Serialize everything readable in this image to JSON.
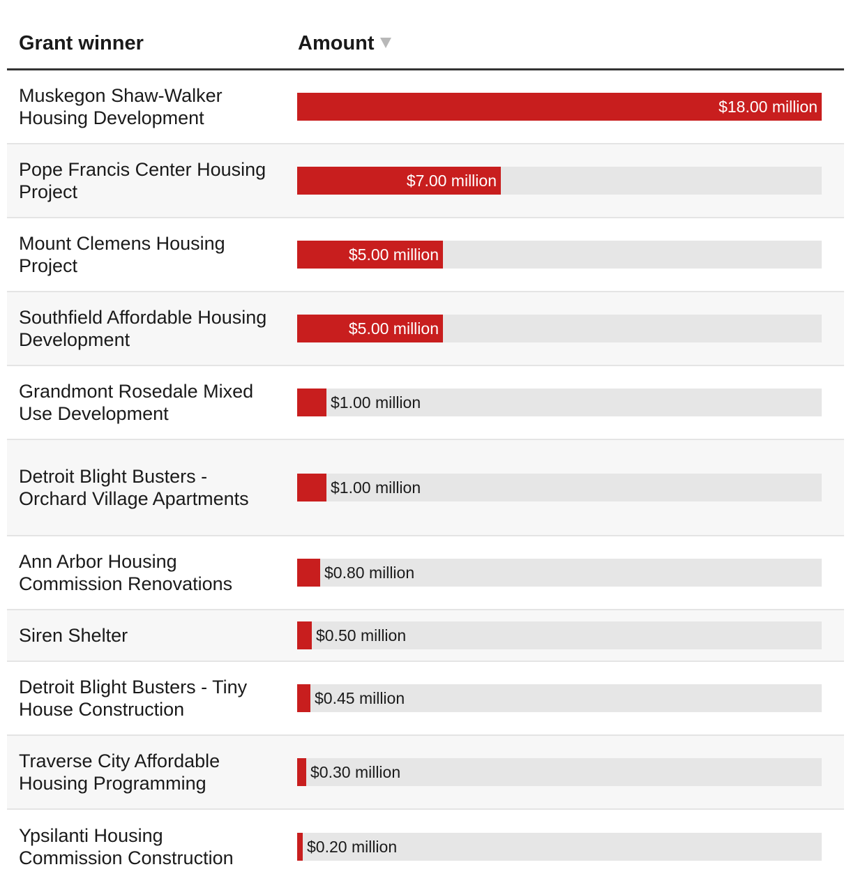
{
  "header": {
    "winner_label": "Grant winner",
    "amount_label": "Amount",
    "sort_icon": "sort-descending-icon"
  },
  "colors": {
    "bar": "#c81e1e",
    "track": "#e6e6e6",
    "alt_row": "#f7f7f7",
    "header_rule": "#333333"
  },
  "chart_data": {
    "type": "bar",
    "orientation": "horizontal",
    "unit": "million",
    "xlim": [
      0,
      18
    ],
    "categories": [
      "Muskegon Shaw-Walker Housing Development",
      "Pope Francis Center Housing Project",
      "Mount Clemens Housing Project",
      "Southfield Affordable Housing Development",
      "Grandmont Rosedale Mixed Use Development",
      "Detroit Blight Busters - Orchard Village Apartments",
      "Ann Arbor Housing Commission Renovations",
      "Siren Shelter",
      "Detroit Blight Busters - Tiny House Construction",
      "Traverse City Affordable Housing Programming",
      "Ypsilanti Housing Commission Construction"
    ],
    "values": [
      18.0,
      7.0,
      5.0,
      5.0,
      1.0,
      1.0,
      0.8,
      0.5,
      0.45,
      0.3,
      0.2
    ],
    "value_labels": [
      "$18.00 million",
      "$7.00 million",
      "$5.00 million",
      "$5.00 million",
      "$1.00 million",
      "$1.00 million",
      "$0.80 million",
      "$0.50 million",
      "$0.45 million",
      "$0.30 million",
      "$0.20 million"
    ]
  }
}
